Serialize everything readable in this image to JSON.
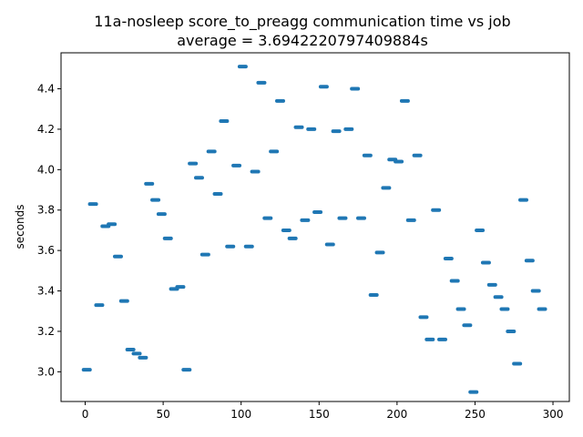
{
  "chart_data": {
    "type": "scatter",
    "title": "11a-nosleep score_to_preagg communication time vs job",
    "subtitle": "average = 3.6942220797409884s",
    "xlabel": "",
    "ylabel": "seconds",
    "xlim": [
      -15.5,
      310.5
    ],
    "ylim": [
      2.853,
      4.578
    ],
    "xticks": [
      0,
      50,
      100,
      150,
      200,
      250,
      300
    ],
    "yticks": [
      3.0,
      3.2,
      3.4,
      3.6,
      3.8,
      4.0,
      4.2,
      4.4
    ],
    "xtick_labels": [
      "0",
      "50",
      "100",
      "150",
      "200",
      "250",
      "300"
    ],
    "ytick_labels": [
      "3.0",
      "3.2",
      "3.4",
      "3.6",
      "3.8",
      "4.0",
      "4.2",
      "4.4"
    ],
    "grid": false,
    "marker_color": "#1f77b4",
    "points": [
      {
        "x": 1,
        "y": 3.01
      },
      {
        "x": 5,
        "y": 3.83
      },
      {
        "x": 9,
        "y": 3.33
      },
      {
        "x": 13,
        "y": 3.72
      },
      {
        "x": 17,
        "y": 3.73
      },
      {
        "x": 21,
        "y": 3.57
      },
      {
        "x": 25,
        "y": 3.35
      },
      {
        "x": 29,
        "y": 3.11
      },
      {
        "x": 33,
        "y": 3.09
      },
      {
        "x": 37,
        "y": 3.07
      },
      {
        "x": 41,
        "y": 3.93
      },
      {
        "x": 45,
        "y": 3.85
      },
      {
        "x": 49,
        "y": 3.78
      },
      {
        "x": 53,
        "y": 3.66
      },
      {
        "x": 57,
        "y": 3.41
      },
      {
        "x": 61,
        "y": 3.42
      },
      {
        "x": 65,
        "y": 3.01
      },
      {
        "x": 69,
        "y": 4.03
      },
      {
        "x": 73,
        "y": 3.96
      },
      {
        "x": 77,
        "y": 3.58
      },
      {
        "x": 81,
        "y": 4.09
      },
      {
        "x": 85,
        "y": 3.88
      },
      {
        "x": 89,
        "y": 4.24
      },
      {
        "x": 93,
        "y": 3.62
      },
      {
        "x": 97,
        "y": 4.02
      },
      {
        "x": 101,
        "y": 4.51
      },
      {
        "x": 105,
        "y": 3.62
      },
      {
        "x": 109,
        "y": 3.99
      },
      {
        "x": 113,
        "y": 4.43
      },
      {
        "x": 117,
        "y": 3.76
      },
      {
        "x": 121,
        "y": 4.09
      },
      {
        "x": 125,
        "y": 4.34
      },
      {
        "x": 129,
        "y": 3.7
      },
      {
        "x": 133,
        "y": 3.66
      },
      {
        "x": 137,
        "y": 4.21
      },
      {
        "x": 141,
        "y": 3.75
      },
      {
        "x": 145,
        "y": 4.2
      },
      {
        "x": 149,
        "y": 3.79
      },
      {
        "x": 153,
        "y": 4.41
      },
      {
        "x": 157,
        "y": 3.63
      },
      {
        "x": 161,
        "y": 4.19
      },
      {
        "x": 165,
        "y": 3.76
      },
      {
        "x": 169,
        "y": 4.2
      },
      {
        "x": 173,
        "y": 4.4
      },
      {
        "x": 177,
        "y": 3.76
      },
      {
        "x": 181,
        "y": 4.07
      },
      {
        "x": 185,
        "y": 3.38
      },
      {
        "x": 189,
        "y": 3.59
      },
      {
        "x": 193,
        "y": 3.91
      },
      {
        "x": 197,
        "y": 4.05
      },
      {
        "x": 201,
        "y": 4.04
      },
      {
        "x": 205,
        "y": 4.34
      },
      {
        "x": 209,
        "y": 3.75
      },
      {
        "x": 213,
        "y": 4.07
      },
      {
        "x": 217,
        "y": 3.27
      },
      {
        "x": 221,
        "y": 3.16
      },
      {
        "x": 225,
        "y": 3.8
      },
      {
        "x": 229,
        "y": 3.16
      },
      {
        "x": 233,
        "y": 3.56
      },
      {
        "x": 237,
        "y": 3.45
      },
      {
        "x": 241,
        "y": 3.31
      },
      {
        "x": 245,
        "y": 3.23
      },
      {
        "x": 249,
        "y": 2.9
      },
      {
        "x": 253,
        "y": 3.7
      },
      {
        "x": 257,
        "y": 3.54
      },
      {
        "x": 261,
        "y": 3.43
      },
      {
        "x": 265,
        "y": 3.37
      },
      {
        "x": 269,
        "y": 3.31
      },
      {
        "x": 273,
        "y": 3.2
      },
      {
        "x": 277,
        "y": 3.04
      },
      {
        "x": 281,
        "y": 3.85
      },
      {
        "x": 285,
        "y": 3.55
      },
      {
        "x": 289,
        "y": 3.4
      },
      {
        "x": 293,
        "y": 3.31
      }
    ]
  }
}
